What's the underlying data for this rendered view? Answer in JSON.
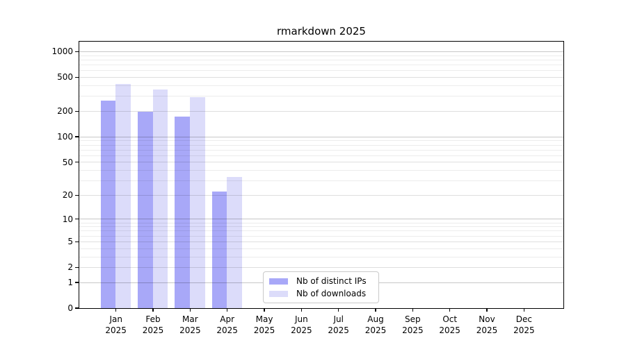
{
  "chart_data": {
    "type": "bar",
    "title": "rmarkdown 2025",
    "x_axis": {
      "year": "2025",
      "categories": [
        "Jan",
        "Feb",
        "Mar",
        "Apr",
        "May",
        "Jun",
        "Jul",
        "Aug",
        "Sep",
        "Oct",
        "Nov",
        "Dec"
      ]
    },
    "y_axis": {
      "scale": "log10(1+v)",
      "labeled_ticks": [
        0,
        1,
        2,
        5,
        10,
        20,
        50,
        100,
        200,
        500,
        1000
      ],
      "minor_ticks": [
        3,
        4,
        6,
        7,
        8,
        9,
        30,
        40,
        60,
        70,
        80,
        90,
        300,
        400,
        600,
        700,
        800,
        900
      ],
      "decade_ticks": [
        1,
        10,
        100,
        1000
      ],
      "ylim": [
        0,
        1000
      ]
    },
    "series": [
      {
        "key": "distinct-ips",
        "name": "Nb of distinct IPs",
        "color": "#a8a8f8",
        "values": [
          265,
          195,
          172,
          22,
          null,
          null,
          null,
          null,
          null,
          null,
          null,
          null
        ]
      },
      {
        "key": "downloads",
        "name": "Nb of downloads",
        "color": "#dcdcfa",
        "values": [
          415,
          355,
          290,
          33,
          null,
          null,
          null,
          null,
          null,
          null,
          null,
          null
        ]
      }
    ],
    "legend": {
      "position": "bottom-center"
    },
    "grid": true
  }
}
